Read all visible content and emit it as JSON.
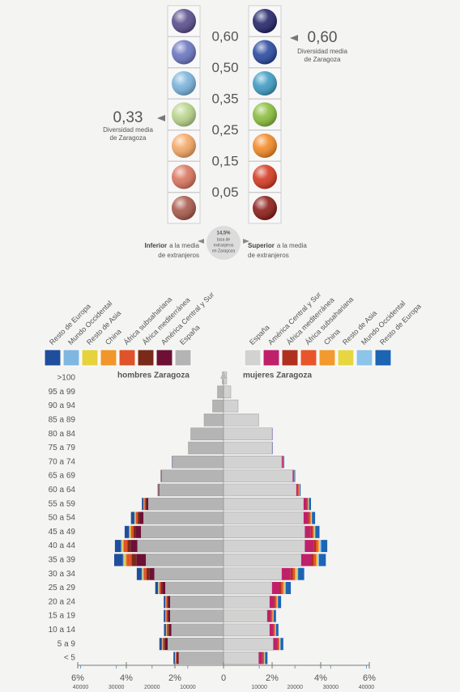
{
  "diversity_legend": {
    "levels": [
      "0,60",
      "0,50",
      "0,35",
      "0,25",
      "0,15",
      "0,05"
    ],
    "left_marker": {
      "value": "0,33",
      "lines": [
        "Diversidad media",
        "de Zaragoza"
      ]
    },
    "right_marker": {
      "value": "0,60",
      "lines": [
        "Diversidad media",
        "de Zaragoza"
      ]
    },
    "center_note": [
      "14,5%",
      "tasa de",
      "extranjeros",
      "en Zaragoza"
    ],
    "left_note": {
      "bold": "Inferior",
      "rest": "a la media",
      "line2": "de extranjeros"
    },
    "right_note": {
      "bold": "Superior",
      "rest": "a la media",
      "line2": "de extranjeros"
    }
  },
  "chart_data": {
    "type": "pyramid",
    "categories": [
      ">100",
      "95 a 99",
      "90 a 94",
      "85 a 89",
      "80 a 84",
      "75 a 79",
      "70 a 74",
      "65 a 69",
      "60 a 64",
      "55 a 59",
      "50 a 54",
      "45 a 49",
      "40 a 44",
      "35 a 39",
      "30 a 34",
      "25 a 29",
      "20 a 24",
      "15 a 19",
      "10 a 14",
      "5 a 9",
      "< 5"
    ],
    "xlim": [
      -6,
      6
    ],
    "xticks": [
      {
        "value": -6,
        "label": "6%"
      },
      {
        "value": -4,
        "label": "4%"
      },
      {
        "value": -2,
        "label": "2%"
      },
      0,
      {
        "value": 2,
        "label": "2%"
      },
      {
        "value": 4,
        "label": "4%"
      },
      {
        "value": 6,
        "label": "6%"
      }
    ],
    "x2lim": [
      -40800,
      40800
    ],
    "x2ticks": [
      {
        "value": -40000,
        "label": "40000"
      },
      {
        "value": -30000,
        "label": "30000"
      },
      {
        "value": -20000,
        "label": "20000"
      },
      {
        "value": -10000,
        "label": "10000"
      },
      10000,
      20000,
      30000,
      40000
    ],
    "groups": [
      {
        "name": "hombres Zaragoza",
        "series": [
          {
            "name": "España",
            "color": "#b4b4b4",
            "values": [
              0.05,
              0.25,
              0.45,
              0.8,
              1.35,
              1.45,
              2.1,
              2.55,
              2.65,
              3.1,
              3.3,
              3.4,
              3.55,
              3.2,
              2.85,
              2.4,
              2.2,
              2.2,
              2.15,
              2.3,
              1.85
            ]
          },
          {
            "name": "América Central y Sur",
            "color": "#6e1036",
            "values": [
              0,
              0,
              0,
              0,
              0,
              0,
              0.01,
              0.01,
              0.02,
              0.08,
              0.15,
              0.2,
              0.27,
              0.39,
              0.21,
              0.12,
              0.08,
              0.08,
              0.09,
              0.11,
              0.06
            ]
          },
          {
            "name": "África mediterránea",
            "color": "#7a2a18",
            "values": [
              0,
              0,
              0,
              0,
              0,
              0,
              0,
              0.01,
              0.01,
              0.04,
              0.08,
              0.1,
              0.14,
              0.2,
              0.11,
              0.06,
              0.04,
              0.04,
              0.05,
              0.05,
              0.03
            ]
          },
          {
            "name": "África subsahariana",
            "color": "#e0522a",
            "values": [
              0,
              0,
              0,
              0,
              0,
              0,
              0,
              0.01,
              0.01,
              0.04,
              0.08,
              0.1,
              0.14,
              0.2,
              0.11,
              0.06,
              0.04,
              0.04,
              0.05,
              0.05,
              0.03
            ]
          },
          {
            "name": "China",
            "color": "#f0962a",
            "values": [
              0,
              0,
              0,
              0,
              0,
              0,
              0,
              0,
              0,
              0.01,
              0.02,
              0.03,
              0.04,
              0.05,
              0.03,
              0.02,
              0.01,
              0.01,
              0.01,
              0.01,
              0.01
            ]
          },
          {
            "name": "Resto de Asia",
            "color": "#e6d23a",
            "values": [
              0,
              0,
              0,
              0,
              0,
              0,
              0,
              0,
              0,
              0.01,
              0.02,
              0.03,
              0.04,
              0.05,
              0.03,
              0.02,
              0.01,
              0.01,
              0.01,
              0.01,
              0.01
            ]
          },
          {
            "name": "Mundo Occidental",
            "color": "#7fb7e0",
            "values": [
              0,
              0,
              0,
              0,
              0,
              0,
              0,
              0,
              0,
              0.01,
              0.02,
              0.03,
              0.04,
              0.05,
              0.03,
              0.02,
              0.01,
              0.01,
              0.01,
              0.01,
              0.01
            ]
          },
          {
            "name": "Resto de Europa",
            "color": "#1f4e9c",
            "values": [
              0,
              0,
              0,
              0,
              0,
              0,
              0.01,
              0.01,
              0.02,
              0.07,
              0.14,
              0.18,
              0.25,
              0.36,
              0.2,
              0.11,
              0.07,
              0.07,
              0.08,
              0.1,
              0.06
            ]
          }
        ]
      },
      {
        "name": "mujeres Zaragoza",
        "series": [
          {
            "name": "España",
            "color": "#d2d2d2",
            "values": [
              0.13,
              0.3,
              0.6,
              1.45,
              2.0,
              2.0,
              2.4,
              2.85,
              3.0,
              3.3,
              3.3,
              3.35,
              3.35,
              3.2,
              2.4,
              2.0,
              1.9,
              1.8,
              1.9,
              2.05,
              1.45
            ]
          },
          {
            "name": "América Central y Sur",
            "color": "#c0206a",
            "values": [
              0,
              0,
              0,
              0,
              0.01,
              0.01,
              0.04,
              0.04,
              0.06,
              0.12,
              0.18,
              0.24,
              0.36,
              0.4,
              0.36,
              0.3,
              0.18,
              0.14,
              0.14,
              0.16,
              0.14
            ]
          },
          {
            "name": "África mediterránea",
            "color": "#b03020",
            "values": [
              0,
              0,
              0,
              0,
              0,
              0,
              0.01,
              0.01,
              0.02,
              0.03,
              0.05,
              0.06,
              0.09,
              0.1,
              0.09,
              0.08,
              0.05,
              0.04,
              0.04,
              0.04,
              0.04
            ]
          },
          {
            "name": "África subsahariana",
            "color": "#e8552a",
            "values": [
              0,
              0,
              0,
              0,
              0,
              0,
              0.01,
              0.01,
              0.02,
              0.03,
              0.05,
              0.06,
              0.09,
              0.1,
              0.09,
              0.08,
              0.05,
              0.04,
              0.04,
              0.04,
              0.04
            ]
          },
          {
            "name": "China",
            "color": "#f29a2e",
            "values": [
              0,
              0,
              0,
              0,
              0,
              0,
              0,
              0,
              0.01,
              0.01,
              0.02,
              0.02,
              0.04,
              0.04,
              0.04,
              0.03,
              0.02,
              0.01,
              0.01,
              0.02,
              0.01
            ]
          },
          {
            "name": "Resto de Asia",
            "color": "#e8d640",
            "values": [
              0,
              0,
              0,
              0,
              0,
              0,
              0,
              0,
              0.01,
              0.01,
              0.02,
              0.02,
              0.04,
              0.04,
              0.04,
              0.03,
              0.02,
              0.01,
              0.01,
              0.02,
              0.01
            ]
          },
          {
            "name": "Mundo Occidental",
            "color": "#8cc4ea",
            "values": [
              0,
              0,
              0,
              0,
              0,
              0.01,
              0.01,
              0.01,
              0.01,
              0.02,
              0.02,
              0.03,
              0.05,
              0.05,
              0.05,
              0.04,
              0.02,
              0.02,
              0.02,
              0.02,
              0.02
            ]
          },
          {
            "name": "Resto de Europa",
            "color": "#1c64b4",
            "values": [
              0,
              0,
              0,
              0,
              0.01,
              0.01,
              0.03,
              0.03,
              0.04,
              0.08,
              0.13,
              0.17,
              0.25,
              0.28,
              0.25,
              0.21,
              0.13,
              0.1,
              0.1,
              0.11,
              0.1
            ]
          }
        ]
      }
    ]
  }
}
